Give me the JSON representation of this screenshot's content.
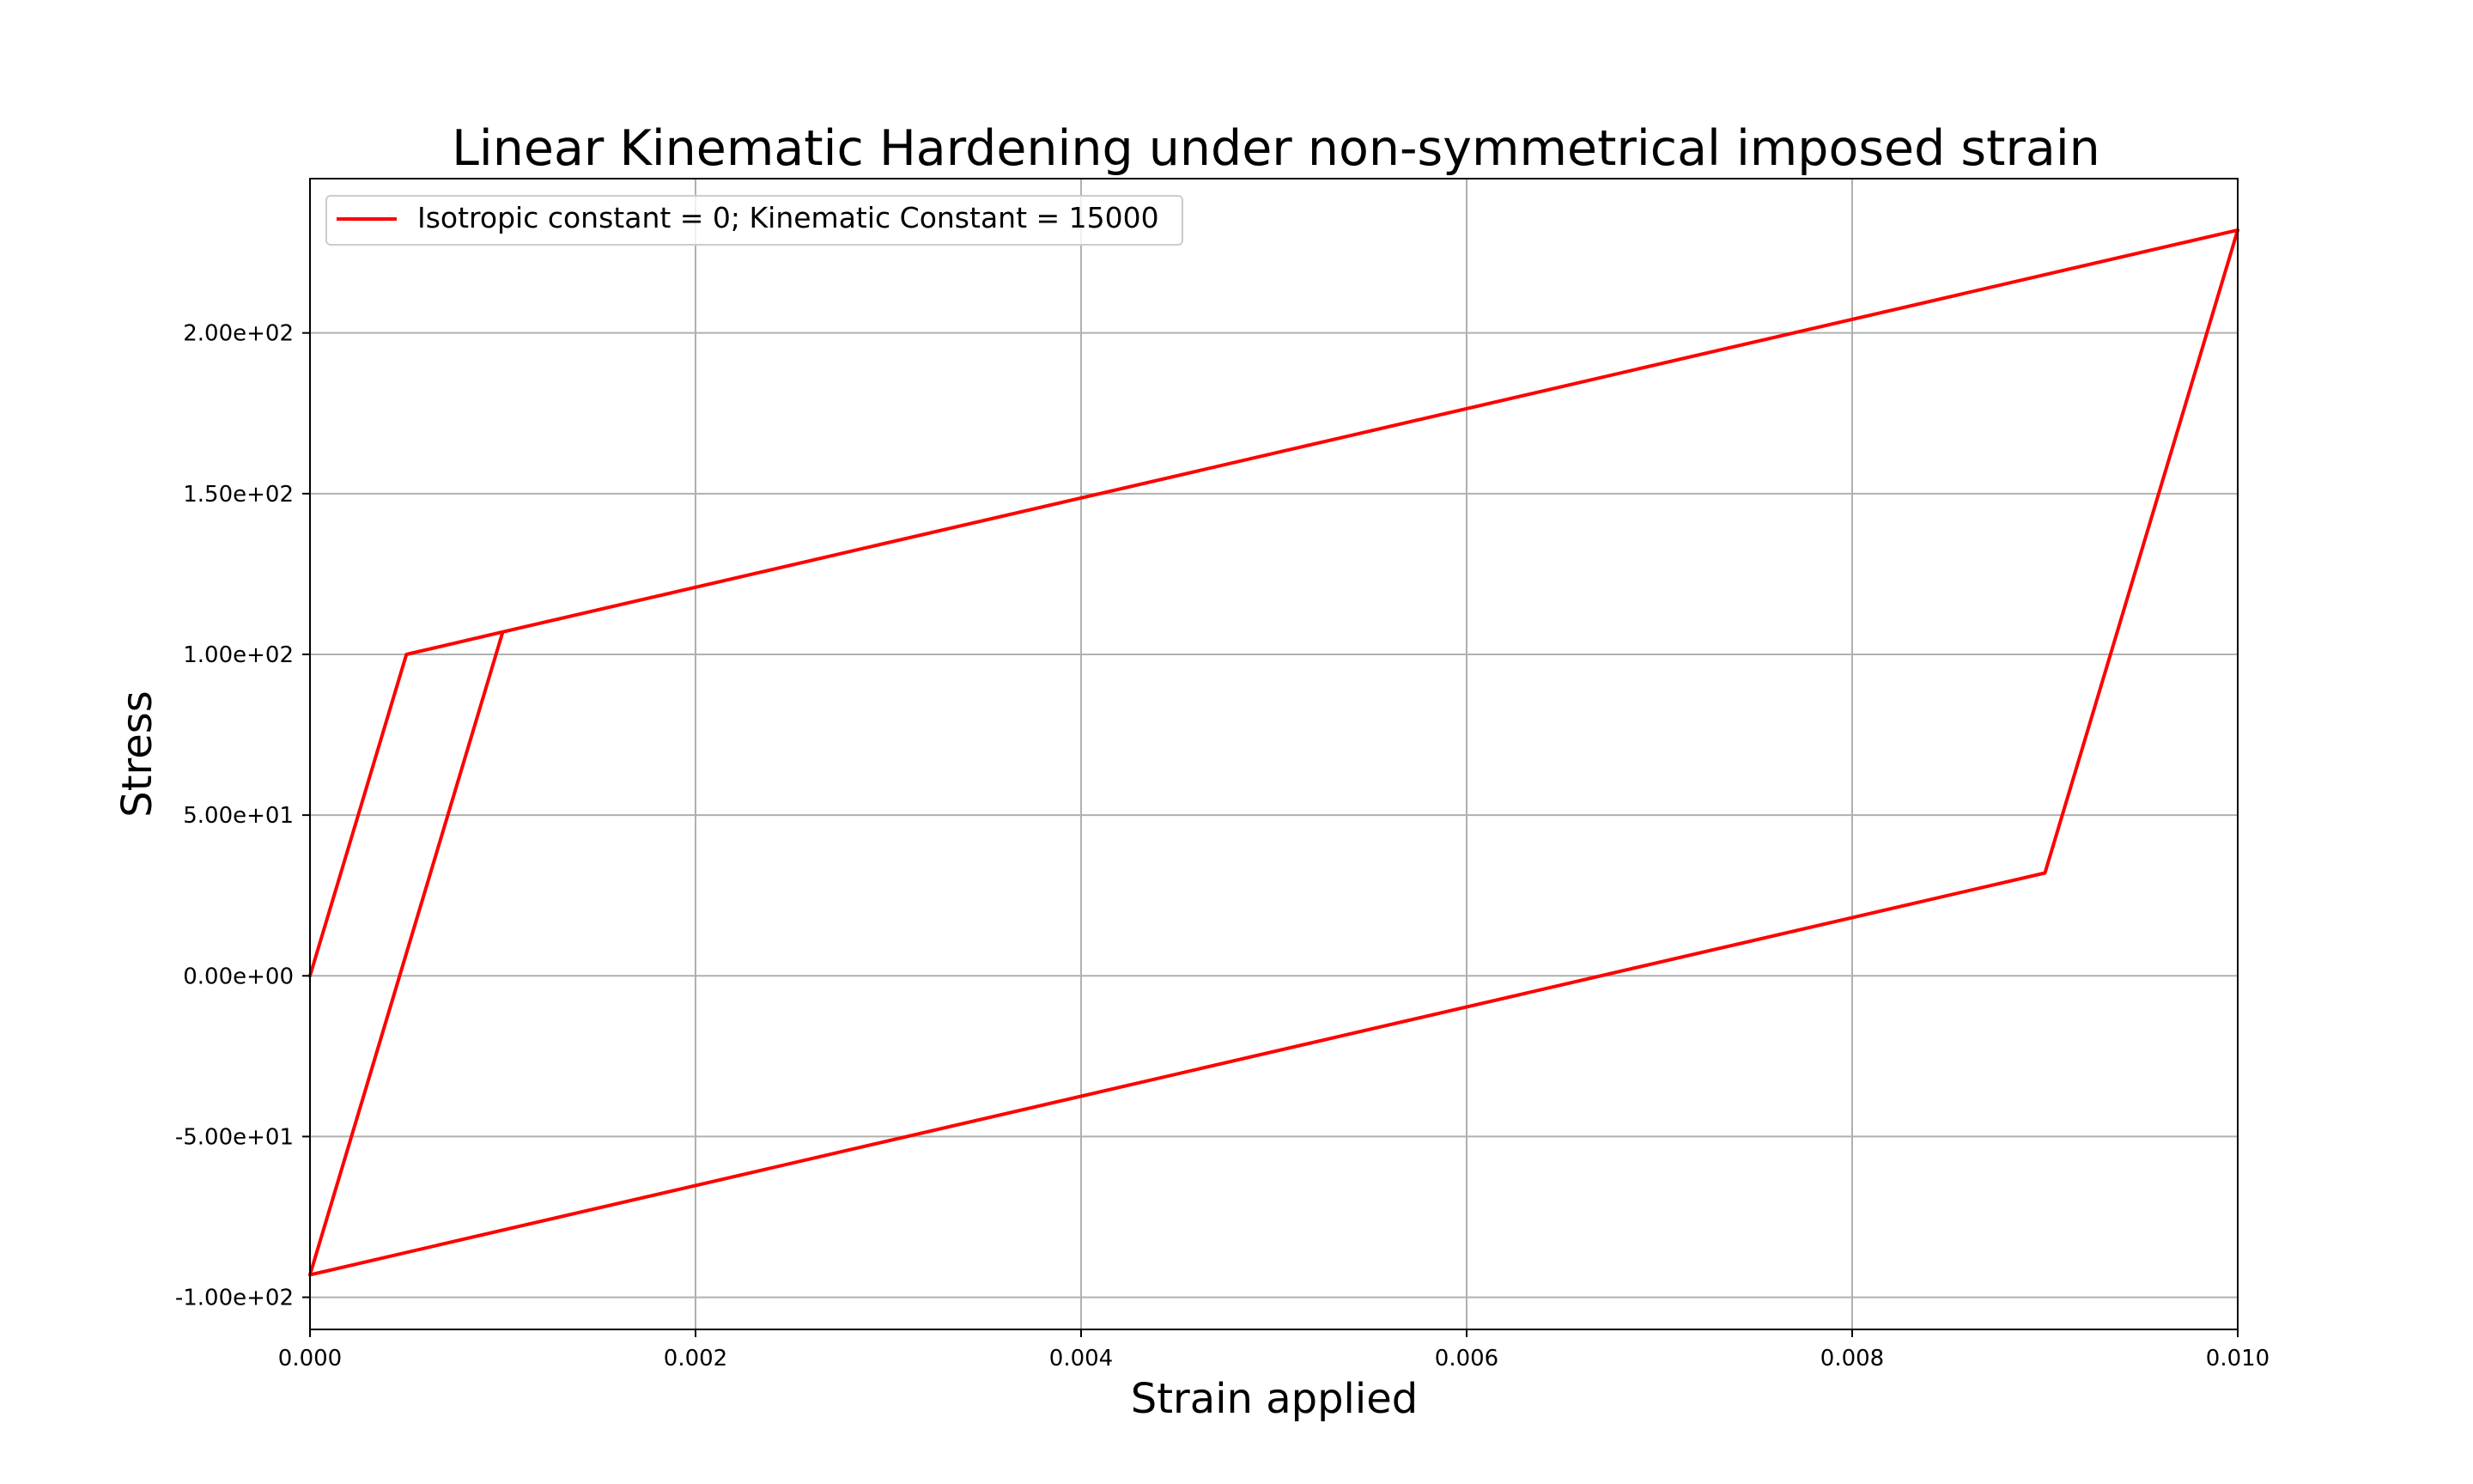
{
  "chart_data": {
    "type": "line",
    "title": "Linear Kinematic Hardening under non-symmetrical imposed strain",
    "xlabel": "Strain applied",
    "ylabel": "Stress",
    "xlim": [
      0.0,
      0.01
    ],
    "ylim": [
      -110.0,
      248.0
    ],
    "x_ticks": [
      0.0,
      0.002,
      0.004,
      0.006,
      0.008,
      0.01
    ],
    "x_tick_labels": [
      "0.000",
      "0.002",
      "0.004",
      "0.006",
      "0.008",
      "0.010"
    ],
    "y_ticks": [
      -100.0,
      -50.0,
      0.0,
      50.0,
      100.0,
      150.0,
      200.0
    ],
    "y_tick_labels": [
      "-1.00e+02",
      "-5.00e+01",
      "0.00e+00",
      "5.00e+01",
      "1.00e+02",
      "1.50e+02",
      "2.00e+02"
    ],
    "grid": true,
    "legend_position": "upper-left",
    "colors": {
      "series": "#ff0000",
      "grid": "#b0b0b0",
      "axes": "#000000"
    },
    "series": [
      {
        "name": "Isotropic constant = 0; Kinematic Constant = 15000",
        "x": [
          0.0,
          0.0005,
          0.001,
          0.0,
          0.001,
          0.01,
          0.009,
          0.0,
          0.0005,
          0.001,
          0.01
        ],
        "y": [
          0.0,
          100.0,
          107.0,
          -93.0,
          107.0,
          232.0,
          32.0,
          -93.0,
          7.0,
          107.0,
          232.0
        ]
      }
    ]
  }
}
